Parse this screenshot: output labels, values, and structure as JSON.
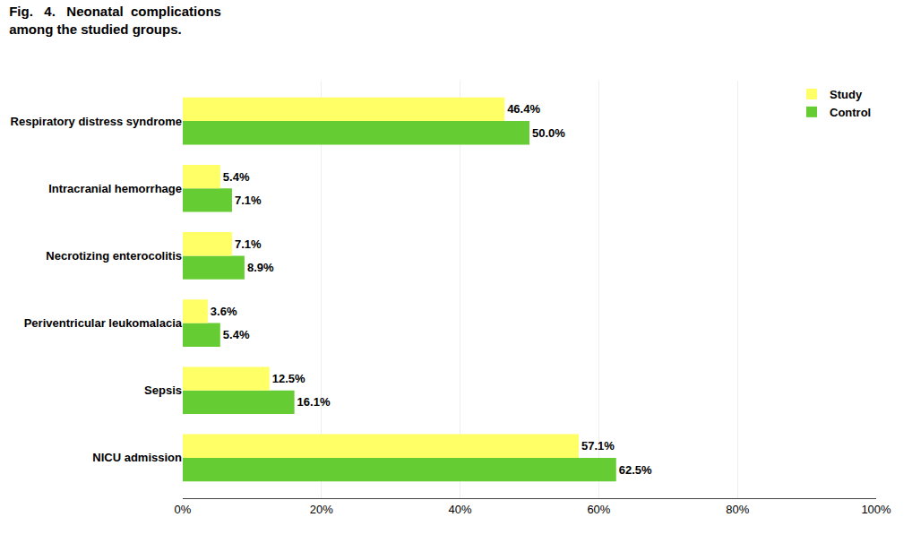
{
  "chart_data": {
    "type": "bar",
    "orientation": "horizontal",
    "title": "Fig.   4.   Neonatal  complications",
    "subtitle": "among the studied groups.",
    "categories": [
      "NICU admission",
      "Sepsis",
      "Periventricular leukomalacia",
      "Necrotizing enterocolitis",
      "Intracranial hemorrhage",
      "Respiratory distress syndrome"
    ],
    "series": [
      {
        "name": "Study",
        "color": "#FFFF66",
        "values": [
          57.1,
          12.5,
          3.6,
          7.1,
          5.4,
          46.4
        ],
        "value_labels": [
          "57.1%",
          "12.5%",
          "3.6%",
          "7.1%",
          "5.4%",
          "46.4%"
        ]
      },
      {
        "name": "Control",
        "color": "#66CC33",
        "values": [
          62.5,
          16.1,
          5.4,
          8.9,
          7.1,
          50.0
        ],
        "value_labels": [
          "62.5%",
          "16.1%",
          "5.4%",
          "8.9%",
          "7.1%",
          "50.0%"
        ]
      }
    ],
    "xlim": [
      0,
      100
    ],
    "xticks": [
      {
        "value": 0,
        "label": "0%"
      },
      {
        "value": 20,
        "label": "20%"
      },
      {
        "value": 40,
        "label": "40%"
      },
      {
        "value": 60,
        "label": "60%"
      },
      {
        "value": 80,
        "label": "80%"
      },
      {
        "value": 100,
        "label": "100%"
      }
    ],
    "grid": true,
    "legend": "upper right",
    "data_labels": true
  }
}
